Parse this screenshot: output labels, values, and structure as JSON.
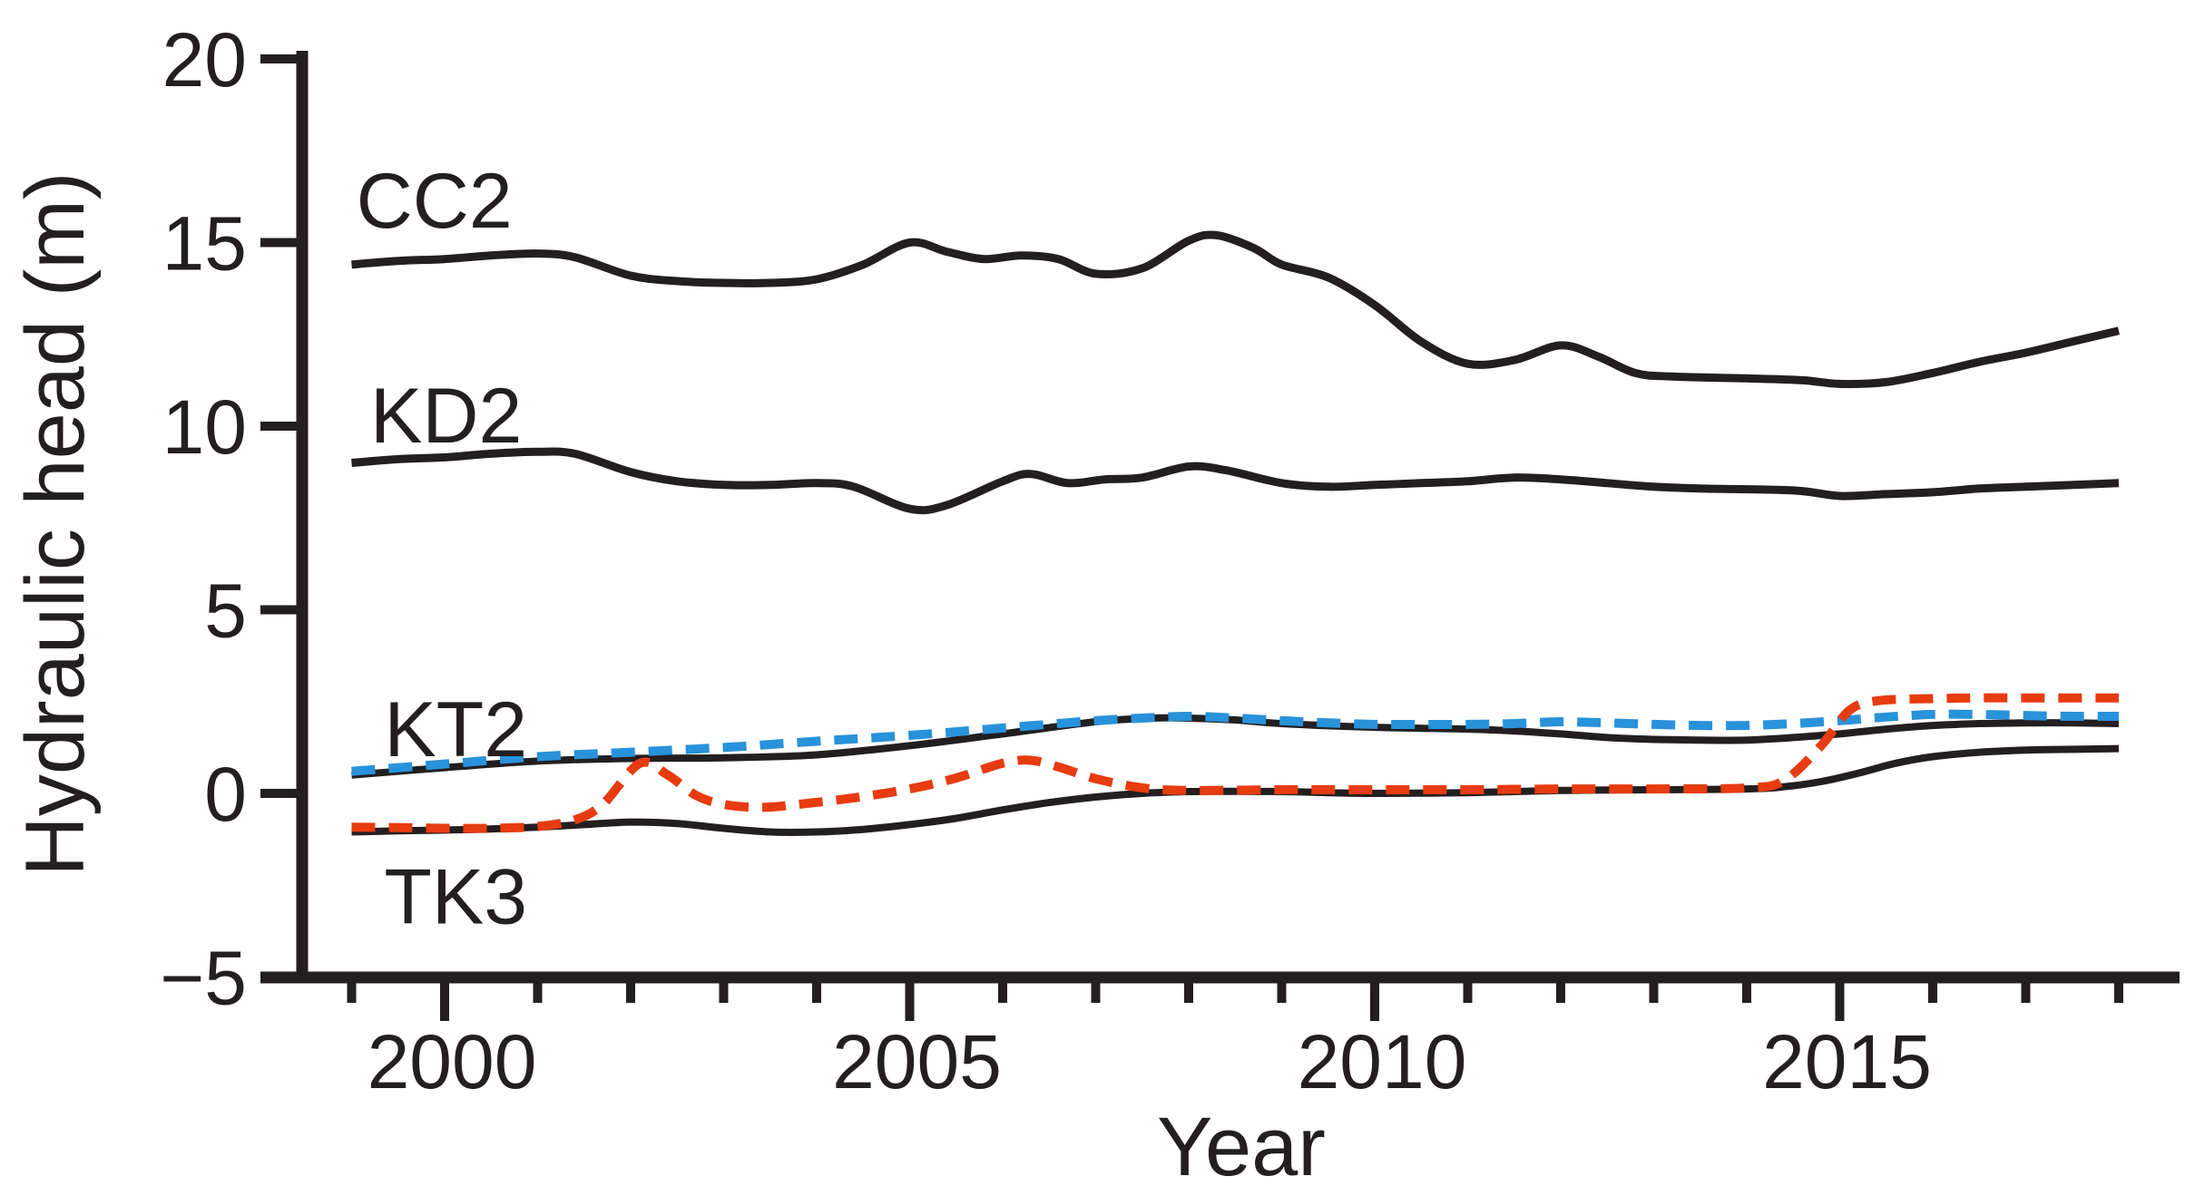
{
  "figure": {
    "background": "#ffffff",
    "ink_color": "#231f20",
    "blue_dash_color": "#2892db",
    "red_dash_color": "#e73b10"
  },
  "chart_data": {
    "type": "line",
    "title": "",
    "xlabel": "Year",
    "ylabel": "Hydraulic head (m)",
    "xlim": [
      1998.45,
      2018.6
    ],
    "ylim": [
      -5,
      20
    ],
    "grid": false,
    "legend": "inline-labels",
    "x_major_ticks": [
      2000,
      2005,
      2010,
      2015
    ],
    "x_major_tick_labels": [
      "2000",
      "2005",
      "2010",
      "2015"
    ],
    "x_minor_ticks": [
      1999,
      2001,
      2002,
      2003,
      2004,
      2006,
      2007,
      2008,
      2009,
      2011,
      2012,
      2013,
      2014,
      2016,
      2017,
      2018
    ],
    "y_ticks": [
      20,
      15,
      10,
      5,
      0,
      -5
    ],
    "y_tick_labels": [
      "20",
      "15",
      "10",
      "5",
      "0",
      "−5"
    ],
    "series": [
      {
        "name": "CC2",
        "style": "solid",
        "color": "#231f20",
        "width": 9,
        "points": [
          [
            1999,
            14.4
          ],
          [
            1999.5,
            14.5
          ],
          [
            2000,
            14.55
          ],
          [
            2000.5,
            14.65
          ],
          [
            2001,
            14.7
          ],
          [
            2001.4,
            14.6
          ],
          [
            2002,
            14.1
          ],
          [
            2002.5,
            13.95
          ],
          [
            2003,
            13.9
          ],
          [
            2003.5,
            13.9
          ],
          [
            2004,
            14.0
          ],
          [
            2004.5,
            14.4
          ],
          [
            2005,
            15.0
          ],
          [
            2005.4,
            14.75
          ],
          [
            2005.8,
            14.55
          ],
          [
            2006.2,
            14.65
          ],
          [
            2006.6,
            14.55
          ],
          [
            2007,
            14.15
          ],
          [
            2007.5,
            14.3
          ],
          [
            2008,
            15.05
          ],
          [
            2008.3,
            15.2
          ],
          [
            2008.7,
            14.85
          ],
          [
            2009,
            14.4
          ],
          [
            2009.5,
            14.05
          ],
          [
            2010,
            13.3
          ],
          [
            2010.5,
            12.3
          ],
          [
            2011,
            11.7
          ],
          [
            2011.5,
            11.8
          ],
          [
            2012,
            12.2
          ],
          [
            2012.4,
            11.9
          ],
          [
            2012.8,
            11.45
          ],
          [
            2013.2,
            11.35
          ],
          [
            2014,
            11.3
          ],
          [
            2014.6,
            11.25
          ],
          [
            2015,
            11.15
          ],
          [
            2015.5,
            11.2
          ],
          [
            2016,
            11.45
          ],
          [
            2016.5,
            11.75
          ],
          [
            2017,
            12.0
          ],
          [
            2017.5,
            12.3
          ],
          [
            2018,
            12.6
          ]
        ]
      },
      {
        "name": "KD2",
        "style": "solid",
        "color": "#231f20",
        "width": 9,
        "points": [
          [
            1999,
            9.0
          ],
          [
            1999.5,
            9.1
          ],
          [
            2000,
            9.15
          ],
          [
            2000.5,
            9.25
          ],
          [
            2001,
            9.3
          ],
          [
            2001.4,
            9.25
          ],
          [
            2002,
            8.75
          ],
          [
            2002.5,
            8.5
          ],
          [
            2003,
            8.4
          ],
          [
            2003.5,
            8.4
          ],
          [
            2004,
            8.45
          ],
          [
            2004.4,
            8.35
          ],
          [
            2005,
            7.75
          ],
          [
            2005.4,
            7.85
          ],
          [
            2006,
            8.5
          ],
          [
            2006.3,
            8.7
          ],
          [
            2006.7,
            8.45
          ],
          [
            2007.1,
            8.55
          ],
          [
            2007.5,
            8.6
          ],
          [
            2008,
            8.9
          ],
          [
            2008.4,
            8.8
          ],
          [
            2009,
            8.45
          ],
          [
            2009.5,
            8.35
          ],
          [
            2010,
            8.4
          ],
          [
            2010.5,
            8.45
          ],
          [
            2011,
            8.5
          ],
          [
            2011.5,
            8.6
          ],
          [
            2012,
            8.55
          ],
          [
            2012.5,
            8.45
          ],
          [
            2013,
            8.35
          ],
          [
            2013.5,
            8.3
          ],
          [
            2014.5,
            8.25
          ],
          [
            2015,
            8.1
          ],
          [
            2015.5,
            8.15
          ],
          [
            2016,
            8.2
          ],
          [
            2016.5,
            8.3
          ],
          [
            2017,
            8.35
          ],
          [
            2018,
            8.45
          ]
        ]
      },
      {
        "name": "KT2-solid",
        "style": "solid",
        "color": "#231f20",
        "width": 8,
        "points": [
          [
            1999,
            0.5
          ],
          [
            2000,
            0.7
          ],
          [
            2001,
            0.88
          ],
          [
            2002,
            0.95
          ],
          [
            2003,
            0.97
          ],
          [
            2004,
            1.05
          ],
          [
            2005,
            1.3
          ],
          [
            2006,
            1.62
          ],
          [
            2007,
            1.95
          ],
          [
            2007.6,
            2.05
          ],
          [
            2008,
            2.05
          ],
          [
            2008.5,
            2.0
          ],
          [
            2009,
            1.9
          ],
          [
            2010,
            1.8
          ],
          [
            2011,
            1.75
          ],
          [
            2011.5,
            1.7
          ],
          [
            2012,
            1.62
          ],
          [
            2012.5,
            1.52
          ],
          [
            2013,
            1.47
          ],
          [
            2013.5,
            1.45
          ],
          [
            2014,
            1.45
          ],
          [
            2014.5,
            1.52
          ],
          [
            2015,
            1.62
          ],
          [
            2015.5,
            1.75
          ],
          [
            2016,
            1.85
          ],
          [
            2016.5,
            1.9
          ],
          [
            2017,
            1.92
          ],
          [
            2017.5,
            1.92
          ],
          [
            2018,
            1.9
          ]
        ]
      },
      {
        "name": "TK3-solid",
        "style": "solid",
        "color": "#231f20",
        "width": 8,
        "points": [
          [
            1999,
            -1.05
          ],
          [
            1999.5,
            -1.02
          ],
          [
            2000,
            -1.0
          ],
          [
            2000.5,
            -0.97
          ],
          [
            2001,
            -0.92
          ],
          [
            2001.5,
            -0.85
          ],
          [
            2002,
            -0.78
          ],
          [
            2002.5,
            -0.82
          ],
          [
            2003,
            -0.95
          ],
          [
            2003.5,
            -1.05
          ],
          [
            2004,
            -1.05
          ],
          [
            2004.5,
            -0.98
          ],
          [
            2005,
            -0.85
          ],
          [
            2005.5,
            -0.68
          ],
          [
            2006,
            -0.45
          ],
          [
            2006.5,
            -0.25
          ],
          [
            2007,
            -0.1
          ],
          [
            2007.5,
            0.0
          ],
          [
            2008,
            0.05
          ],
          [
            2009,
            0.05
          ],
          [
            2009.5,
            0.02
          ],
          [
            2010,
            0.0
          ],
          [
            2011,
            0.02
          ],
          [
            2012,
            0.08
          ],
          [
            2013,
            0.1
          ],
          [
            2014,
            0.12
          ],
          [
            2014.4,
            0.18
          ],
          [
            2014.8,
            0.32
          ],
          [
            2015.2,
            0.55
          ],
          [
            2015.6,
            0.82
          ],
          [
            2016,
            1.0
          ],
          [
            2016.5,
            1.12
          ],
          [
            2017,
            1.18
          ],
          [
            2017.5,
            1.2
          ],
          [
            2018,
            1.22
          ]
        ]
      },
      {
        "name": "KT2-dashed",
        "style": "dashed",
        "color": "#2892db",
        "width": 10,
        "points": [
          [
            1999,
            0.6
          ],
          [
            2000,
            0.8
          ],
          [
            2001,
            1.0
          ],
          [
            2002,
            1.12
          ],
          [
            2003,
            1.25
          ],
          [
            2004,
            1.42
          ],
          [
            2005,
            1.58
          ],
          [
            2006,
            1.78
          ],
          [
            2007,
            1.98
          ],
          [
            2007.5,
            2.05
          ],
          [
            2008,
            2.1
          ],
          [
            2008.5,
            2.05
          ],
          [
            2009,
            1.98
          ],
          [
            2009.5,
            1.92
          ],
          [
            2010,
            1.88
          ],
          [
            2011,
            1.88
          ],
          [
            2011.5,
            1.9
          ],
          [
            2012,
            1.95
          ],
          [
            2012.5,
            1.92
          ],
          [
            2013,
            1.88
          ],
          [
            2013.5,
            1.85
          ],
          [
            2014,
            1.85
          ],
          [
            2014.5,
            1.9
          ],
          [
            2015,
            1.98
          ],
          [
            2015.5,
            2.08
          ],
          [
            2016,
            2.15
          ],
          [
            2016.5,
            2.15
          ],
          [
            2017,
            2.12
          ],
          [
            2017.5,
            2.1
          ],
          [
            2018,
            2.1
          ]
        ]
      },
      {
        "name": "TK3-dashed",
        "style": "dashed",
        "color": "#e73b10",
        "width": 10,
        "points": [
          [
            1999,
            -0.92
          ],
          [
            1999.5,
            -0.93
          ],
          [
            2000,
            -0.95
          ],
          [
            2000.5,
            -0.95
          ],
          [
            2001,
            -0.9
          ],
          [
            2001.4,
            -0.72
          ],
          [
            2001.7,
            -0.3
          ],
          [
            2002.1,
            0.82
          ],
          [
            2002.4,
            0.5
          ],
          [
            2002.7,
            -0.05
          ],
          [
            2003,
            -0.3
          ],
          [
            2003.4,
            -0.38
          ],
          [
            2003.8,
            -0.3
          ],
          [
            2004.4,
            -0.12
          ],
          [
            2005,
            0.12
          ],
          [
            2005.5,
            0.42
          ],
          [
            2006,
            0.82
          ],
          [
            2006.3,
            0.9
          ],
          [
            2006.6,
            0.72
          ],
          [
            2007,
            0.4
          ],
          [
            2007.5,
            0.15
          ],
          [
            2008,
            0.08
          ],
          [
            2009,
            0.1
          ],
          [
            2010,
            0.1
          ],
          [
            2011,
            0.1
          ],
          [
            2012,
            0.12
          ],
          [
            2013,
            0.12
          ],
          [
            2014,
            0.15
          ],
          [
            2014.4,
            0.35
          ],
          [
            2014.8,
            1.3
          ],
          [
            2015.1,
            2.25
          ],
          [
            2015.4,
            2.52
          ],
          [
            2016,
            2.58
          ],
          [
            2016.5,
            2.6
          ],
          [
            2017,
            2.6
          ],
          [
            2017.5,
            2.6
          ],
          [
            2018,
            2.6
          ]
        ]
      }
    ],
    "series_labels": [
      {
        "text": "CC2",
        "year": 1999.05,
        "value": 16.15
      },
      {
        "text": "KD2",
        "year": 1999.2,
        "value": 10.3
      },
      {
        "text": "KT2",
        "year": 1999.35,
        "value": 1.75
      },
      {
        "text": "TK3",
        "year": 1999.35,
        "value": -2.8
      }
    ]
  }
}
